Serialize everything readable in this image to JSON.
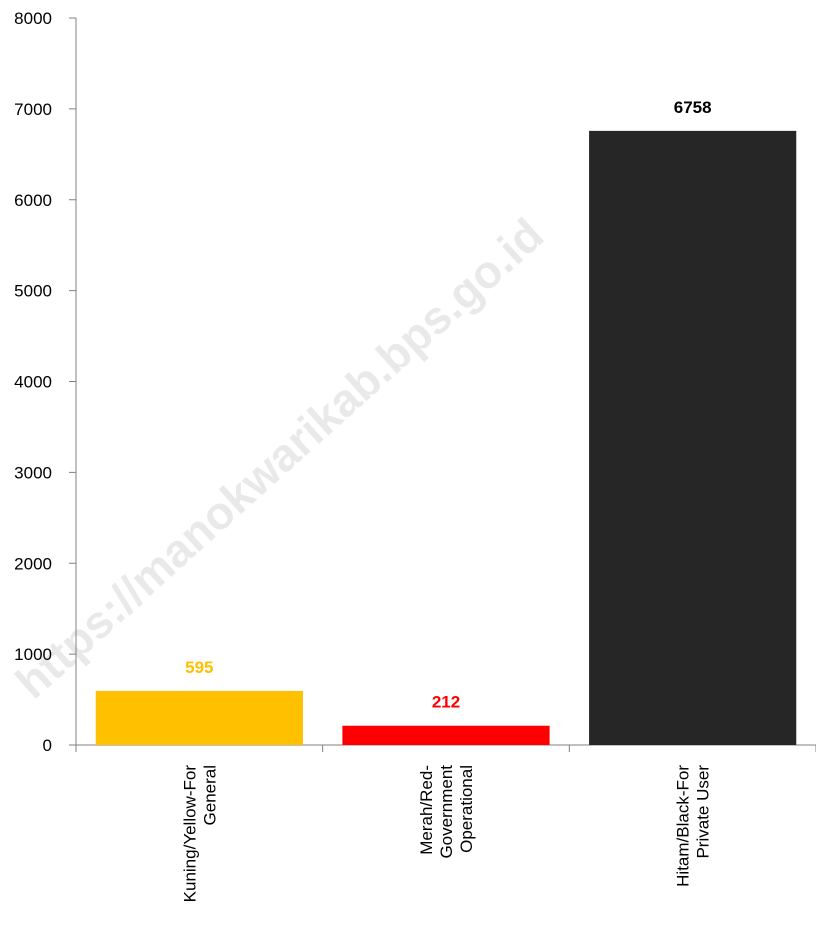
{
  "chart_data": {
    "type": "bar",
    "categories": [
      [
        "Kuning/Yellow-For",
        "General"
      ],
      [
        "Merah/Red-",
        "Government",
        "Operational"
      ],
      [
        "Hitam/Black-For",
        "Private User"
      ]
    ],
    "values": [
      595,
      212,
      6758
    ],
    "colors": [
      "#FFC000",
      "#FF0000",
      "#262626"
    ],
    "label_colors": [
      "#FFC000",
      "#FF0000",
      "#000000"
    ],
    "yticks": [
      0,
      1000,
      2000,
      3000,
      4000,
      5000,
      6000,
      7000,
      8000
    ],
    "ylim": [
      0,
      8000
    ],
    "title": "",
    "xlabel": "",
    "ylabel": "",
    "grid": false,
    "legend": "none"
  },
  "watermark": "https://manokwarikab.bps.go.id"
}
